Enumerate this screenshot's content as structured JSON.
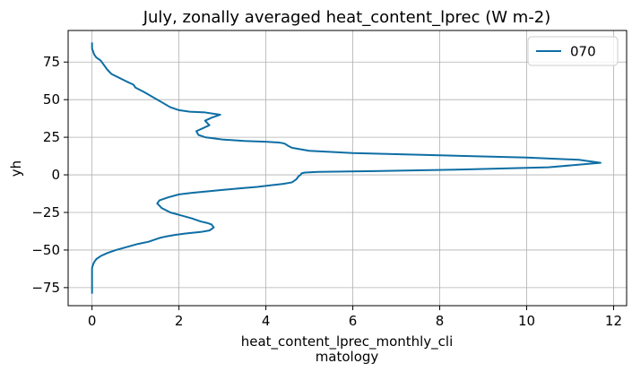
{
  "chart_data": {
    "type": "line",
    "title": "July, zonally averaged heat_content_lprec (W m-2)",
    "xlabel_lines": [
      "heat_content_lprec_monthly_cli",
      "matology"
    ],
    "ylabel": "yh",
    "xlim": [
      -0.55,
      12.3
    ],
    "ylim": [
      -87,
      96
    ],
    "xticks": [
      0,
      2,
      4,
      6,
      8,
      10,
      12
    ],
    "xtick_labels": [
      "0",
      "2",
      "4",
      "6",
      "8",
      "10",
      "12"
    ],
    "yticks": [
      -75,
      -50,
      -25,
      0,
      25,
      50,
      75
    ],
    "ytick_labels": [
      "−75",
      "−50",
      "−25",
      "0",
      "25",
      "50",
      "75"
    ],
    "grid": true,
    "legend_position": "top-right",
    "series": [
      {
        "name": "070",
        "color": "#0e6ea4",
        "x": [
          0.0,
          0.0,
          0.0,
          0.0,
          0.0,
          0.02,
          0.05,
          0.1,
          0.2,
          0.35,
          0.55,
          0.8,
          1.05,
          1.3,
          1.45,
          1.55,
          1.7,
          1.9,
          2.15,
          2.5,
          2.7,
          2.8,
          2.75,
          2.65,
          2.5,
          2.3,
          2.05,
          1.8,
          1.6,
          1.5,
          1.55,
          1.75,
          2.0,
          2.3,
          2.65,
          3.0,
          3.4,
          3.8,
          4.1,
          4.4,
          4.6,
          4.7,
          4.75,
          4.8,
          4.82,
          4.9,
          5.2,
          6.5,
          8.5,
          10.5,
          11.7,
          11.2,
          10.0,
          8.0,
          6.0,
          5.0,
          4.6,
          4.5,
          4.45,
          4.4,
          4.3,
          4.0,
          3.5,
          3.0,
          2.6,
          2.45,
          2.4,
          2.55,
          2.7,
          2.6,
          2.75,
          2.95,
          2.6,
          2.25,
          2.0,
          1.8,
          1.2,
          1.0,
          0.95,
          0.8,
          0.45,
          0.35,
          0.25,
          0.2,
          0.1,
          0.05,
          0.0,
          0.0
        ],
        "y": [
          -79,
          -75,
          -70,
          -65,
          -62,
          -60,
          -58,
          -56,
          -54,
          -52,
          -50,
          -48,
          -46,
          -44.5,
          -43,
          -42,
          -41,
          -40,
          -39,
          -38,
          -37,
          -35,
          -33,
          -32,
          -31,
          -29,
          -27,
          -25,
          -22,
          -19,
          -17,
          -15,
          -13,
          -12,
          -11,
          -10,
          -9,
          -8,
          -7,
          -6,
          -5,
          -3,
          -1,
          0,
          1,
          1.5,
          2,
          2.5,
          3.5,
          5,
          8,
          10,
          11.5,
          13,
          14.5,
          16,
          18,
          19.5,
          20.5,
          21,
          21.5,
          22,
          22.5,
          23.5,
          25,
          26.5,
          29,
          31,
          33,
          36,
          38,
          40,
          41.5,
          42,
          43,
          45,
          55,
          58,
          60,
          62,
          67,
          70,
          74,
          76,
          78,
          80,
          84,
          88
        ]
      }
    ]
  }
}
